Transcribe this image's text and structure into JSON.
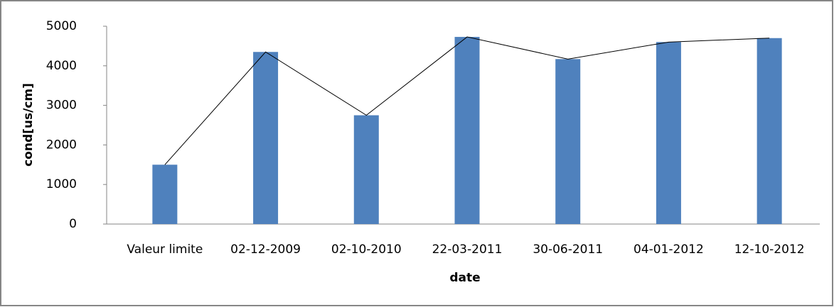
{
  "chart_data": {
    "type": "bar",
    "x_label": "date",
    "y_label": "cond[us/cm]",
    "categories": [
      "Valeur limite",
      "02-12-2009",
      "02-10-2010",
      "22-03-2011",
      "30-06-2011",
      "04-01-2012",
      "12-10-2012"
    ],
    "series": [
      {
        "type": "bar",
        "color": "#4f81bd",
        "values": [
          1500,
          4350,
          2750,
          4730,
          4170,
          4600,
          4700
        ]
      },
      {
        "type": "line",
        "color": "#000000",
        "values": [
          1500,
          4350,
          2750,
          4730,
          4170,
          4600,
          4700
        ]
      }
    ],
    "ylim": [
      0,
      5000
    ],
    "yticks": [
      0,
      1000,
      2000,
      3000,
      4000,
      5000
    ],
    "grid": false
  }
}
